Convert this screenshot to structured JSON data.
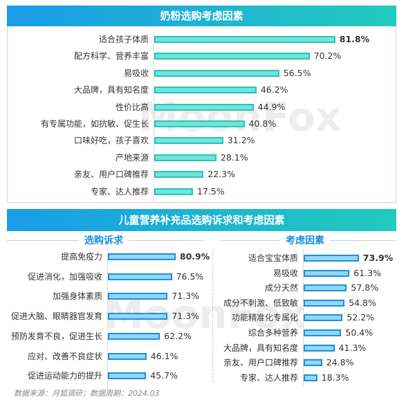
{
  "chart_data": [
    {
      "type": "bar",
      "orientation": "horizontal",
      "title": "奶粉选购考虑因素",
      "categories": [
        "适合孩子体质",
        "配方科学、营养丰富",
        "易吸收",
        "大品牌，具有知名度",
        "性价比高",
        "有专属功能，如抗敏、促生长",
        "口味好吃，孩子喜欢",
        "产地来源",
        "亲友、用户口碑推荐",
        "专家、达人推荐"
      ],
      "values": [
        81.8,
        70.2,
        56.5,
        46.2,
        44.9,
        40.8,
        31.2,
        28.1,
        22.3,
        17.5
      ],
      "labels": [
        "81.8%",
        "70.2%",
        "56.5%",
        "46.2%",
        "44.9%",
        "40.8%",
        "31.2%",
        "28.1%",
        "22.3%",
        "17.5%"
      ],
      "color": "#6fe6dc",
      "border": "#2cc3b6"
    },
    {
      "type": "bar",
      "orientation": "horizontal",
      "title": "选购诉求",
      "categories": [
        "提高免疫力",
        "促进消化，加强吸收",
        "加强身体素质",
        "促进大脑、眼睛器官发育",
        "预防发育不良，促进生长",
        "应对、改善不良症状",
        "促进运动能力的提升"
      ],
      "values": [
        80.9,
        76.5,
        71.3,
        71.3,
        62.2,
        46.1,
        45.7
      ],
      "labels": [
        "80.9%",
        "76.5%",
        "71.3%",
        "71.3%",
        "62.2%",
        "46.1%",
        "45.7%"
      ],
      "color": "#93d6f6",
      "border": "#1b90da"
    },
    {
      "type": "bar",
      "orientation": "horizontal",
      "title": "考虑因素",
      "categories": [
        "适合宝宝体质",
        "易吸收",
        "成分天然",
        "成分不刺激、低致敏",
        "功能精准化专属化",
        "综合多种营养",
        "大品牌，具有知名度",
        "亲友、用户口碑推荐",
        "专家、达人推荐"
      ],
      "values": [
        73.9,
        61.3,
        57.8,
        54.8,
        52.2,
        50.4,
        41.3,
        24.8,
        18.3
      ],
      "labels": [
        "73.9%",
        "61.3%",
        "57.8%",
        "54.8%",
        "52.2%",
        "50.4%",
        "41.3%",
        "24.8%",
        "18.3%"
      ],
      "color": "#93d6f6",
      "border": "#1b90da"
    }
  ],
  "section2_title": "儿童营养补充品选购诉求和考虑因素",
  "watermark": "MoonFox",
  "footer": "数据来源：月狐调研；数据周期：2024.03"
}
